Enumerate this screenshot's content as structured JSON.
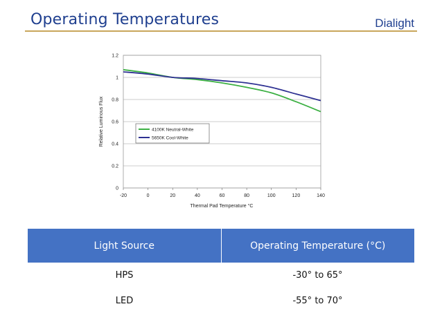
{
  "slide": {
    "title": "Operating Temperatures",
    "brand": "Dialight"
  },
  "chart_data": {
    "type": "line",
    "xlabel": "Thermal Pad Temperature °C",
    "ylabel": "Relative Luminous Flux",
    "xlim": [
      -20,
      140
    ],
    "ylim": [
      0,
      1.2
    ],
    "x_ticks": [
      "-20",
      "0",
      "20",
      "40",
      "60",
      "80",
      "100",
      "120",
      "140"
    ],
    "y_ticks": [
      "0",
      "0.2",
      "0.4",
      "0.6",
      "0.8",
      "1",
      "1.2"
    ],
    "grid": "horizontal",
    "legend_placement": "center-left",
    "series": [
      {
        "name": "4100K Neutral-White",
        "color": "#3cb043",
        "x": [
          -20,
          0,
          20,
          40,
          60,
          80,
          100,
          120,
          140
        ],
        "y": [
          1.07,
          1.04,
          1.0,
          0.98,
          0.95,
          0.91,
          0.86,
          0.78,
          0.69
        ]
      },
      {
        "name": "5650K Cool-White",
        "color": "#2e3192",
        "x": [
          -20,
          0,
          20,
          40,
          60,
          80,
          100,
          120,
          140
        ],
        "y": [
          1.05,
          1.03,
          1.0,
          0.99,
          0.97,
          0.95,
          0.91,
          0.85,
          0.79
        ]
      }
    ]
  },
  "table": {
    "headers": [
      "Light Source",
      "Operating Temperature (°C)"
    ],
    "rows": [
      [
        "HPS",
        "-30° to 65°"
      ],
      [
        "LED",
        "-55° to 70°"
      ]
    ]
  }
}
